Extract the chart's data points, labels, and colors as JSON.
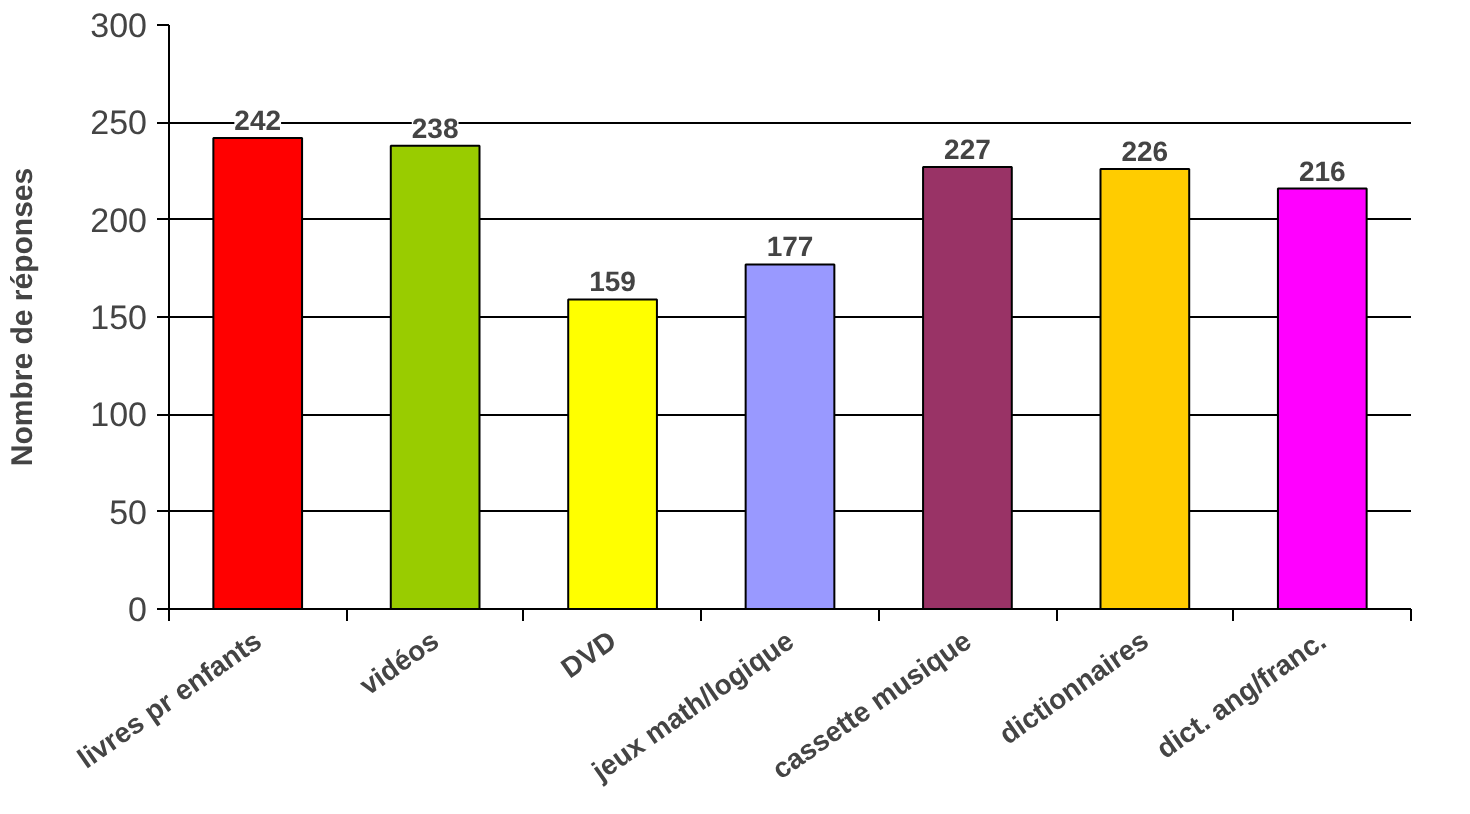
{
  "chart_data": {
    "type": "bar",
    "ylabel": "Nombre de réponses",
    "categories": [
      "livres pr enfants",
      "vidéos",
      "DVD",
      "jeux math/logique",
      "cassette musique",
      "dictionnaires",
      "dict. ang/franc."
    ],
    "values": [
      242,
      238,
      159,
      177,
      227,
      226,
      216
    ],
    "colors": [
      "#ff0000",
      "#99cc00",
      "#ffff00",
      "#9999ff",
      "#993366",
      "#ffcc00",
      "#ff00ff"
    ],
    "ylim": [
      0,
      300
    ],
    "yticks": [
      0,
      50,
      100,
      150,
      200,
      250,
      300
    ],
    "grid": "y",
    "data_labels": true
  }
}
